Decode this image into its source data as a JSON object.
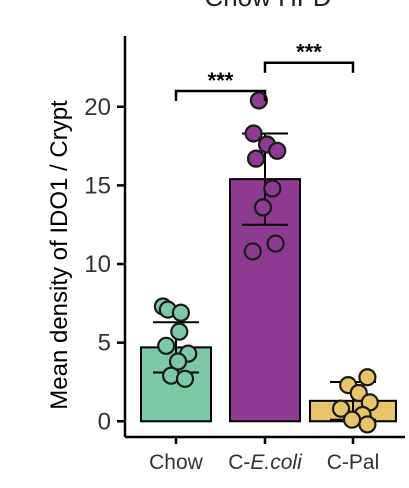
{
  "header": {
    "top_text": "Chow    HFD"
  },
  "colors": {
    "axis": "#000000",
    "tick_label": "#333333",
    "Chow": "#7DC9A7",
    "C-E.coli": "#8E3A93",
    "C-Pal": "#E9C46A",
    "point_edge": "#1A1A1A"
  },
  "chart_data": {
    "type": "bar",
    "ylabel": "Mean density of IDO1 / Crypt",
    "xlabel": "",
    "ylim": [
      -1,
      24.5
    ],
    "yticks": [
      0,
      5,
      10,
      15,
      20
    ],
    "categories": [
      {
        "label": "Chow",
        "italic": false,
        "key": "Chow"
      },
      {
        "prefix": "C-",
        "italic_part": "E.coli",
        "key": "C-E.coli"
      },
      {
        "label": "C-Pal",
        "italic": false,
        "key": "C-Pal"
      }
    ],
    "means": [
      4.7,
      15.4,
      1.3
    ],
    "sd": [
      1.6,
      2.9,
      1.2
    ],
    "points": [
      [
        7.3,
        7.1,
        6.9,
        5.7,
        4.8,
        4.3,
        3.8,
        2.9,
        2.7
      ],
      [
        20.4,
        18.3,
        17.6,
        17.2,
        16.7,
        14.8,
        13.6,
        11.3,
        10.8
      ],
      [
        2.8,
        2.3,
        1.8,
        1.2,
        0.8,
        0.4,
        0.1,
        -0.2
      ]
    ],
    "point_offsets": [
      [
        -0.32,
        -0.2,
        0.12,
        0.08,
        -0.24,
        0.3,
        0.05,
        -0.12,
        0.22
      ],
      [
        -0.15,
        -0.28,
        0.05,
        0.3,
        -0.22,
        0.18,
        -0.05,
        0.26,
        -0.3
      ],
      [
        0.3,
        -0.1,
        0.12,
        0.35,
        -0.25,
        0.2,
        -0.02,
        0.3
      ]
    ],
    "significance": [
      {
        "from": 0,
        "to": 1,
        "label": "***",
        "y": 21.0
      },
      {
        "from": 1,
        "to": 2,
        "label": "***",
        "y": 22.8
      }
    ]
  }
}
